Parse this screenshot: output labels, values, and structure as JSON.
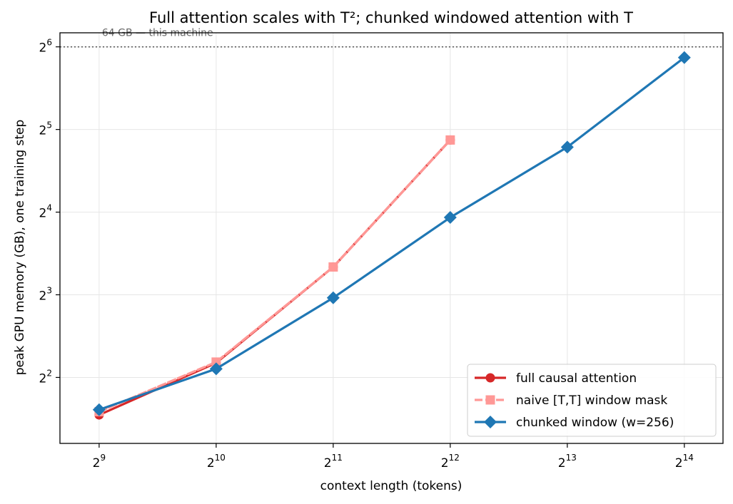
{
  "chart_data": {
    "type": "line",
    "title": "Full attention scales with T²; chunked windowed attention with T",
    "xlabel": "context length (tokens)",
    "ylabel": "peak GPU memory (GB), one training step",
    "x_scale": "log2",
    "y_scale": "log2",
    "xlim": [
      406,
      20600
    ],
    "ylim": [
      2.3,
      72
    ],
    "x_ticks": [
      {
        "value": 512,
        "base": "2",
        "exp": "9"
      },
      {
        "value": 1024,
        "base": "2",
        "exp": "10"
      },
      {
        "value": 2048,
        "base": "2",
        "exp": "11"
      },
      {
        "value": 4096,
        "base": "2",
        "exp": "12"
      },
      {
        "value": 8192,
        "base": "2",
        "exp": "13"
      },
      {
        "value": 16384,
        "base": "2",
        "exp": "14"
      }
    ],
    "y_ticks": [
      {
        "value": 4,
        "base": "2",
        "exp": "2"
      },
      {
        "value": 8,
        "base": "2",
        "exp": "3"
      },
      {
        "value": 16,
        "base": "2",
        "exp": "4"
      },
      {
        "value": 32,
        "base": "2",
        "exp": "5"
      },
      {
        "value": 64,
        "base": "2",
        "exp": "6"
      }
    ],
    "grid": true,
    "legend_position": "bottom-right",
    "series": [
      {
        "name": "full causal attention",
        "color": "#d62728",
        "marker": "circle",
        "line": "solid",
        "x": [
          512,
          1024,
          2048,
          4096
        ],
        "y": [
          2.92,
          4.52,
          10.1,
          29.3
        ]
      },
      {
        "name": "naive [T,T] window mask",
        "color": "#ff9896",
        "marker": "square",
        "line": "dashed",
        "x": [
          512,
          1024,
          2048,
          4096
        ],
        "y": [
          3.0,
          4.55,
          10.1,
          29.3
        ]
      },
      {
        "name": "chunked window (w=256)",
        "color": "#1f77b4",
        "marker": "diamond",
        "line": "solid",
        "x": [
          512,
          1024,
          2048,
          4096,
          8192,
          16384
        ],
        "y": [
          3.05,
          4.3,
          7.8,
          15.3,
          27.6,
          58.5
        ]
      }
    ],
    "reference_line": {
      "y": 64,
      "label": "64 GB — this machine",
      "color": "#555555"
    }
  }
}
